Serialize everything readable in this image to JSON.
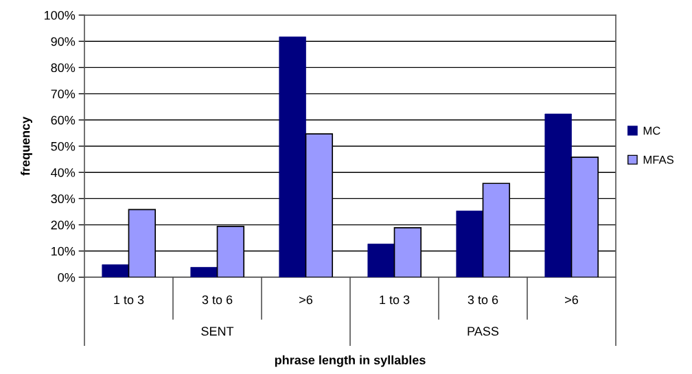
{
  "chart_data": {
    "type": "bar",
    "xlabel": "phrase length in syllables",
    "ylabel": "frequency",
    "categories": [
      "1 to 3",
      "3 to 6",
      ">6",
      "1 to 3",
      "3 to 6",
      ">6"
    ],
    "series": [
      {
        "name": "MC",
        "color": "#000080",
        "values": [
          4.8,
          3.8,
          91.7,
          12.7,
          25.3,
          62.3
        ]
      },
      {
        "name": "MFAS",
        "color": "#9999ff",
        "values": [
          25.8,
          19.4,
          54.7,
          18.9,
          35.8,
          45.8
        ]
      }
    ],
    "ylim": [
      0,
      100
    ],
    "yticks": [
      {
        "value": 0,
        "label": "0%"
      },
      {
        "value": 10,
        "label": "10%"
      },
      {
        "value": 20,
        "label": "20%"
      },
      {
        "value": 30,
        "label": "30%"
      },
      {
        "value": 40,
        "label": "40%"
      },
      {
        "value": 50,
        "label": "50%"
      },
      {
        "value": 60,
        "label": "60%"
      },
      {
        "value": 70,
        "label": "70%"
      },
      {
        "value": 80,
        "label": "80%"
      },
      {
        "value": 90,
        "label": "90%"
      },
      {
        "value": 100,
        "label": "100%"
      }
    ],
    "annotations": [
      "SENT",
      "PASS"
    ],
    "grid": "y",
    "legend": "right"
  }
}
